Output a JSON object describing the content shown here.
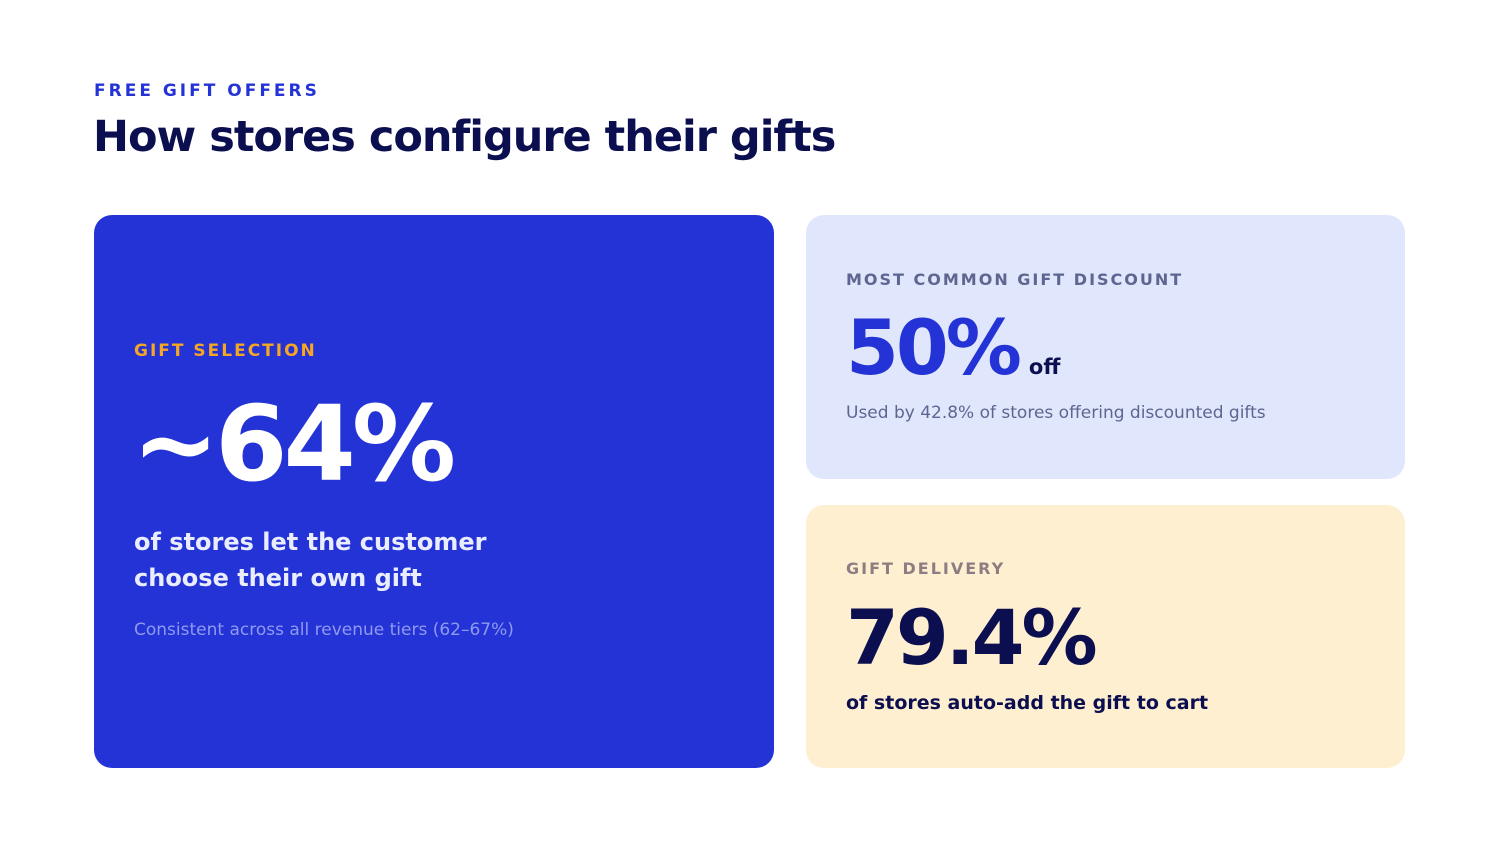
{
  "header": {
    "eyebrow": "FREE GIFT OFFERS",
    "title": "How stores configure their gifts"
  },
  "gift_selection": {
    "label": "GIFT SELECTION",
    "value": "~64%",
    "description": "of stores let the customer choose their own gift",
    "note": "Consistent across all revenue tiers (62–67%)"
  },
  "gift_discount": {
    "label": "MOST COMMON GIFT DISCOUNT",
    "value": "50%",
    "suffix": "off",
    "note": "Used by 42.8% of stores offering discounted gifts"
  },
  "gift_delivery": {
    "label": "GIFT DELIVERY",
    "value": "79.4%",
    "description": "of stores auto-add the gift to cart"
  },
  "colors": {
    "accent_blue": "#2433d6",
    "navy": "#0c0f4f",
    "orange": "#f5a623",
    "light_blue_card": "#e0e6fb",
    "cream_card": "#feefd1"
  }
}
